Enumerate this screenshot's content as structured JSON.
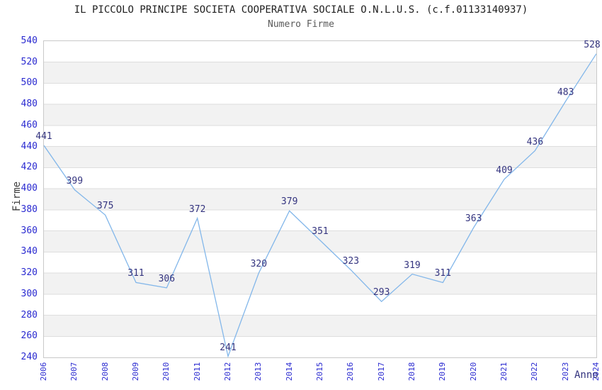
{
  "chart_data": {
    "type": "line",
    "title": "IL PICCOLO PRINCIPE SOCIETA COOPERATIVA SOCIALE O.N.L.U.S. (c.f.01133140937)",
    "subtitle": "Numero Firme",
    "xlabel": "Anno",
    "ylabel": "Firme",
    "x": [
      "2006",
      "2007",
      "2008",
      "2009",
      "2010",
      "2011",
      "2012",
      "2013",
      "2014",
      "2015",
      "2016",
      "2017",
      "2018",
      "2019",
      "2020",
      "2021",
      "2022",
      "2023",
      "2024"
    ],
    "series": [
      {
        "name": "Numero Firme",
        "values": [
          441,
          399,
          375,
          311,
          306,
          372,
          241,
          320,
          379,
          351,
          323,
          293,
          319,
          311,
          363,
          409,
          436,
          483,
          528
        ]
      }
    ],
    "ylim": [
      240,
      540
    ],
    "ytick_step": 20,
    "grid": true,
    "alternating_bands": true,
    "data_labels_visible": true,
    "legend_position": "none",
    "colors": {
      "line": "#83b7ea",
      "band": "#f2f2f2",
      "grid": "#dedede",
      "plot_border": "#c9c9c9",
      "tick_label": "#2a2ad0",
      "data_label": "#34347f",
      "y_axis_title": "#3a3a3a",
      "x_axis_title": "#34347f",
      "title": "#1f1f1f",
      "subtitle": "#5a5a5a",
      "background": "#ffffff"
    }
  }
}
